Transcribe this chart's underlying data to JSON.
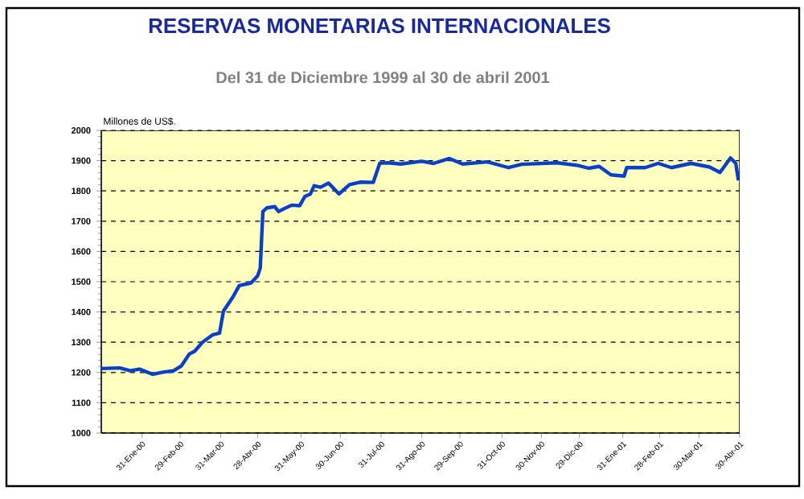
{
  "chart_data": {
    "type": "line",
    "title": "RESERVAS MONETARIAS INTERNACIONALES",
    "subtitle": "Del 31 de Diciembre 1999 al 30 de abril 2001",
    "ylabel": "Millones de US$.",
    "x": [
      "1999-12-31",
      "2000-01-14",
      "2000-01-22",
      "2000-01-29",
      "2000-02-08",
      "2000-02-16",
      "2000-02-24",
      "2000-03-01",
      "2000-03-07",
      "2000-03-11",
      "2000-03-17",
      "2000-03-25",
      "2000-03-30",
      "2000-04-02",
      "2000-04-09",
      "2000-04-14",
      "2000-04-19",
      "2000-04-23",
      "2000-04-28",
      "2000-04-30",
      "2000-05-02",
      "2000-05-05",
      "2000-05-11",
      "2000-05-14",
      "2000-05-18",
      "2000-05-24",
      "2000-05-30",
      "2000-06-03",
      "2000-06-07",
      "2000-06-10",
      "2000-06-15",
      "2000-06-21",
      "2000-06-29",
      "2000-07-07",
      "2000-07-15",
      "2000-07-25",
      "2000-07-30",
      "2000-08-05",
      "2000-08-15",
      "2000-08-31",
      "2000-09-09",
      "2000-09-21",
      "2000-10-01",
      "2000-10-20",
      "2000-11-05",
      "2000-11-15",
      "2000-12-12",
      "2000-12-28",
      "2001-01-05",
      "2001-01-13",
      "2001-01-22",
      "2001-02-01",
      "2001-02-03",
      "2001-02-17",
      "2001-02-27",
      "2001-03-09",
      "2001-03-24",
      "2001-04-07",
      "2001-04-15",
      "2001-04-23",
      "2001-04-27",
      "2001-04-29"
    ],
    "series": [
      {
        "color": "#0a3fc8",
        "values": [
          1213,
          1215,
          1206,
          1211,
          1194,
          1201,
          1206,
          1222,
          1261,
          1270,
          1300,
          1325,
          1330,
          1403,
          1448,
          1487,
          1492,
          1496,
          1519,
          1545,
          1732,
          1744,
          1748,
          1732,
          1741,
          1753,
          1751,
          1782,
          1789,
          1817,
          1812,
          1826,
          1790,
          1821,
          1829,
          1828,
          1892,
          1893,
          1889,
          1898,
          1891,
          1907,
          1889,
          1896,
          1877,
          1888,
          1893,
          1884,
          1875,
          1881,
          1853,
          1849,
          1877,
          1877,
          1891,
          1877,
          1891,
          1879,
          1861,
          1909,
          1891,
          1835
        ]
      }
    ],
    "xlim": [
      "1999-12-31",
      "2001-04-30"
    ],
    "ylim": [
      1000,
      2000
    ],
    "yticks": [
      1000,
      1100,
      1200,
      1300,
      1400,
      1500,
      1600,
      1700,
      1800,
      1900,
      2000
    ],
    "xticks": [
      {
        "value": "2000-01-31",
        "label": "31-Ene-00"
      },
      {
        "value": "2000-02-29",
        "label": "29-Feb-00"
      },
      {
        "value": "2000-03-31",
        "label": "31-Mar-00"
      },
      {
        "value": "2000-04-28",
        "label": "28-Abr-00"
      },
      {
        "value": "2000-05-31",
        "label": "31-May-00"
      },
      {
        "value": "2000-06-30",
        "label": "30-Jun-00"
      },
      {
        "value": "2000-07-31",
        "label": "31-Jul-00"
      },
      {
        "value": "2000-08-31",
        "label": "31-Ago-00"
      },
      {
        "value": "2000-09-29",
        "label": "29-Sep-00"
      },
      {
        "value": "2000-10-31",
        "label": "31-Oct-00"
      },
      {
        "value": "2000-11-30",
        "label": "30-Nov-00"
      },
      {
        "value": "2000-12-29",
        "label": "29-Dic-00"
      },
      {
        "value": "2001-01-31",
        "label": "31-Ene-01"
      },
      {
        "value": "2001-02-28",
        "label": "28-Feb-01"
      },
      {
        "value": "2001-03-30",
        "label": "30-Mar-01"
      },
      {
        "value": "2001-04-30",
        "label": "30-Abr-01"
      }
    ],
    "grid": "y"
  }
}
